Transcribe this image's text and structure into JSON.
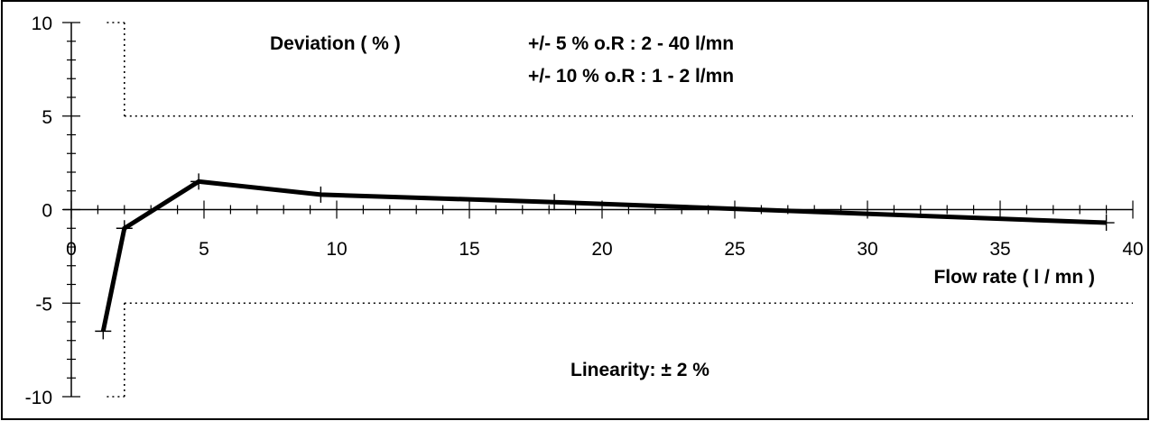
{
  "chart_data": {
    "type": "line",
    "title": "",
    "xlabel": "Flow rate ( l / mn )",
    "ylabel": "Deviation ( % )",
    "xlim": [
      0,
      40
    ],
    "ylim": [
      -10,
      10
    ],
    "x_ticks": [
      "0",
      "5",
      "10",
      "15",
      "20",
      "25",
      "30",
      "35",
      "40"
    ],
    "y_ticks": [
      "10",
      "5",
      "0",
      "-5",
      "-10"
    ],
    "grid": false,
    "series": [
      {
        "name": "",
        "x": [
          1.2,
          2,
          4.8,
          9.4,
          18.2,
          39
        ],
        "y": [
          -6.5,
          -1,
          1.5,
          0.8,
          0.4,
          -0.7
        ]
      }
    ],
    "tolerance_band": {
      "inner": {
        "x_range": [
          1,
          2
        ],
        "limit": 10
      },
      "outer": {
        "x_range": [
          2,
          40
        ],
        "limit": 5
      }
    },
    "annotations": {
      "tol_line1": "+/- 5 % o.R  :  2 - 40 l/mn",
      "tol_line2": "+/- 10 % o.R  :  1 - 2 l/mn",
      "linearity": "Linearity: ± 2 %"
    },
    "colors": {
      "line": "#000000",
      "background": "#ffffff"
    }
  }
}
